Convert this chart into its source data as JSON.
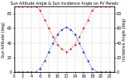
{
  "title": "Sun Altitude Angle & Sun Incidence Angle on PV Panels",
  "x_values": [
    0,
    1,
    2,
    3,
    4,
    5,
    6,
    7,
    8,
    9,
    10,
    11,
    12,
    13,
    14,
    15,
    16,
    17,
    18,
    19,
    20,
    21,
    22,
    23
  ],
  "sun_altitude": [
    0,
    0,
    0,
    0,
    0,
    0,
    5,
    15,
    28,
    40,
    52,
    58,
    62,
    58,
    52,
    40,
    28,
    15,
    5,
    0,
    0,
    0,
    0,
    0
  ],
  "sun_incidence": [
    90,
    90,
    90,
    90,
    90,
    90,
    85,
    72,
    60,
    48,
    38,
    32,
    28,
    32,
    38,
    48,
    60,
    72,
    85,
    90,
    90,
    90,
    90,
    90
  ],
  "altitude_color": "#0000dd",
  "incidence_color": "#dd0000",
  "ylim_left": [
    0,
    90
  ],
  "ylim_right": [
    0,
    90
  ],
  "ylabel_left": "Sun Altitude (deg)",
  "ylabel_right": "Incidence Angle (deg)",
  "grid_color": "#aaaaaa",
  "bg_color": "#ffffff",
  "tick_labelsize": 3.5,
  "title_fontsize": 3.5,
  "marker": ".",
  "markersize": 1.2,
  "linewidth": 0.6,
  "linestyle": "dotted"
}
